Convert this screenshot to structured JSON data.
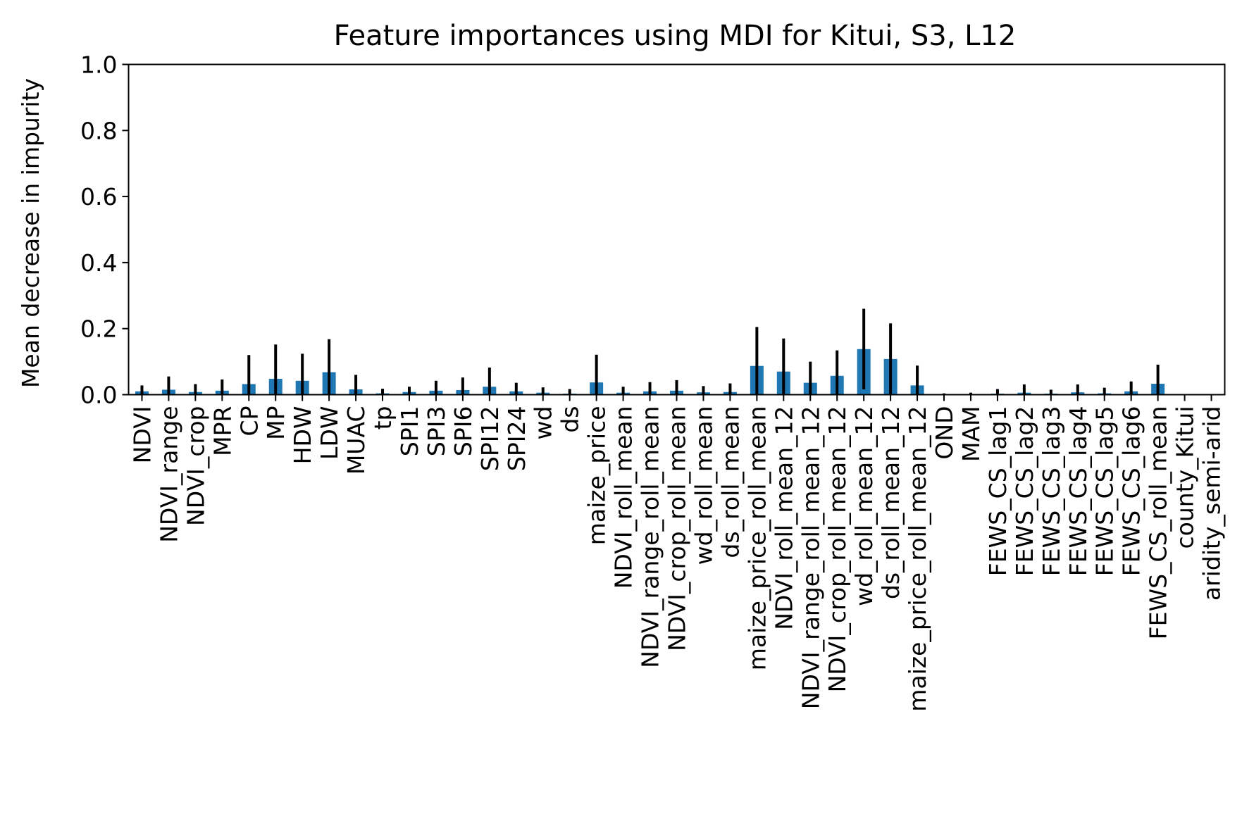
{
  "chart_data": {
    "type": "bar",
    "title": "Feature importances using MDI for Kitui, S3, L12",
    "xlabel": "",
    "ylabel": "Mean decrease in impurity",
    "ylim": [
      0,
      1.0
    ],
    "yticks": [
      "0.0",
      "0.2",
      "0.4",
      "0.6",
      "0.8",
      "1.0"
    ],
    "grid": false,
    "legend": "none",
    "bar_color": "#1f77b4",
    "error_color": "#000000",
    "categories": [
      "NDVI",
      "NDVI_range",
      "NDVI_crop",
      "MPR",
      "CP",
      "MP",
      "HDW",
      "LDW",
      "MUAC",
      "tp",
      "SPI1",
      "SPI3",
      "SPI6",
      "SPI12",
      "SPI24",
      "wd",
      "ds",
      "maize_price",
      "NDVI_roll_mean",
      "NDVI_range_roll_mean",
      "NDVI_crop_roll_mean",
      "wd_roll_mean",
      "ds_roll_mean",
      "maize_price_roll_mean",
      "NDVI_roll_mean_12",
      "NDVI_range_roll_mean_12",
      "NDVI_crop_roll_mean_12",
      "wd_roll_mean_12",
      "ds_roll_mean_12",
      "maize_price_roll_mean_12",
      "OND",
      "MAM",
      "FEWS_CS_lag1",
      "FEWS_CS_lag2",
      "FEWS_CS_lag3",
      "FEWS_CS_lag4",
      "FEWS_CS_lag5",
      "FEWS_CS_lag6",
      "FEWS_CS_roll_mean",
      "county_Kitui",
      "aridity_semi-arid"
    ],
    "values": [
      0.01,
      0.015,
      0.008,
      0.012,
      0.032,
      0.048,
      0.042,
      0.068,
      0.016,
      0.004,
      0.008,
      0.012,
      0.014,
      0.024,
      0.01,
      0.006,
      0.003,
      0.037,
      0.006,
      0.01,
      0.012,
      0.007,
      0.008,
      0.087,
      0.07,
      0.036,
      0.057,
      0.138,
      0.108,
      0.028,
      0.001,
      0.001,
      0.003,
      0.006,
      0.003,
      0.007,
      0.004,
      0.01,
      0.033,
      0.0,
      0.0
    ],
    "errors": [
      0.018,
      0.04,
      0.024,
      0.034,
      0.088,
      0.104,
      0.082,
      0.1,
      0.044,
      0.014,
      0.016,
      0.03,
      0.038,
      0.058,
      0.026,
      0.016,
      0.014,
      0.084,
      0.018,
      0.028,
      0.032,
      0.019,
      0.026,
      0.118,
      0.1,
      0.064,
      0.077,
      0.122,
      0.108,
      0.06,
      0.003,
      0.005,
      0.014,
      0.025,
      0.012,
      0.024,
      0.017,
      0.03,
      0.058,
      0.0,
      0.0
    ]
  }
}
